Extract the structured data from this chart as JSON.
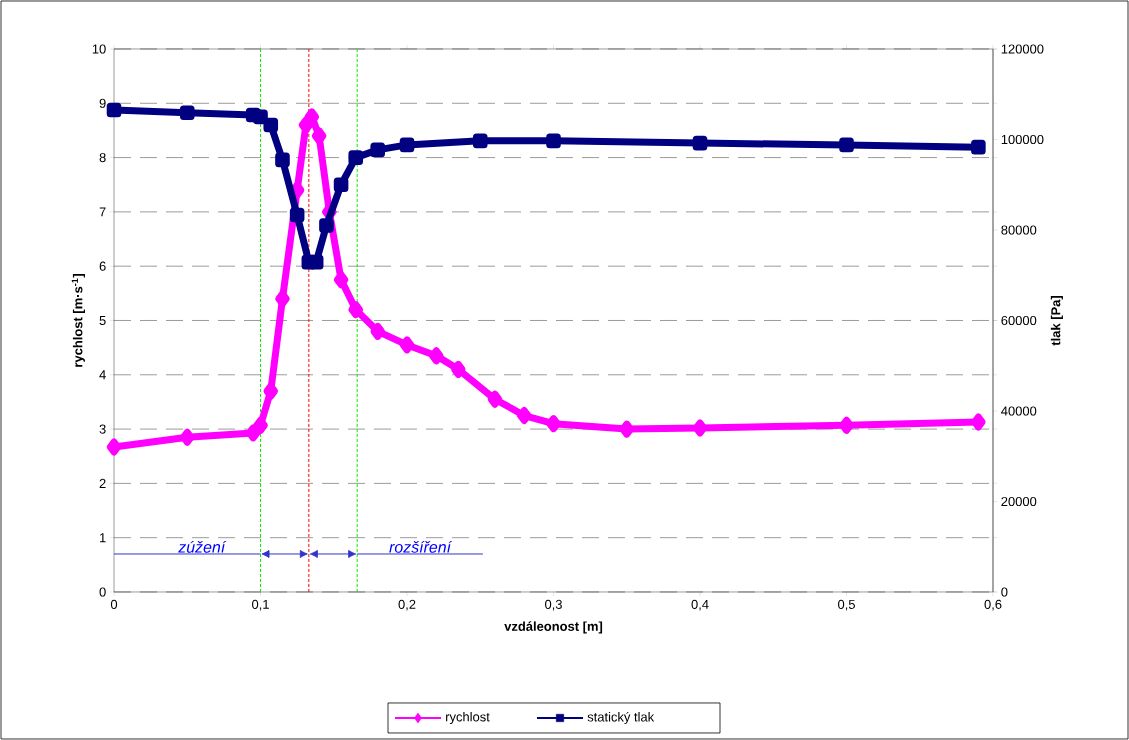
{
  "chart_data": {
    "type": "line",
    "xlabel": "vzdáleonost [m]",
    "ylabel": "rychlost [m·s$^{-1}$]",
    "y2label": "tlak [Pa]",
    "xlim": [
      0,
      0.6
    ],
    "xticks": [
      0,
      {
        "value": 0.1,
        "label": "0,1"
      },
      {
        "value": 0.2,
        "label": "0,2"
      },
      {
        "value": 0.3,
        "label": "0,3"
      },
      {
        "value": 0.4,
        "label": "0,4"
      },
      {
        "value": 0.5,
        "label": "0,5"
      },
      {
        "value": 0.6,
        "label": "0,6"
      }
    ],
    "ylim": [
      0,
      10
    ],
    "yticks": [
      0,
      1,
      2,
      3,
      4,
      5,
      6,
      7,
      8,
      9,
      10
    ],
    "y2lim": [
      0,
      120000
    ],
    "y2ticks": [
      0,
      20000,
      40000,
      60000,
      80000,
      100000,
      120000
    ],
    "grid": "y",
    "legend": "bottom",
    "series": [
      {
        "name": "rychlost",
        "color": "#ff00ff",
        "marker": "diamond",
        "x": [
          0,
          0.05,
          0.095,
          0.1,
          0.107,
          0.115,
          0.125,
          0.131,
          0.135,
          0.14,
          0.147,
          0.155,
          0.165,
          0.18,
          0.2,
          0.22,
          0.235,
          0.26,
          0.28,
          0.3,
          0.35,
          0.4,
          0.5,
          0.59
        ],
        "values": [
          2.67,
          2.85,
          2.93,
          3.07,
          3.7,
          5.4,
          7.4,
          8.6,
          8.75,
          8.4,
          7.0,
          5.75,
          5.2,
          4.8,
          4.55,
          4.35,
          4.1,
          3.55,
          3.25,
          3.1,
          3.0,
          3.02,
          3.07,
          3.13
        ]
      },
      {
        "name": "statický tlak",
        "color": "#000080",
        "marker": "square",
        "axis": "y2",
        "x": [
          0,
          0.05,
          0.095,
          0.1,
          0.107,
          0.115,
          0.125,
          0.133,
          0.138,
          0.145,
          0.155,
          0.165,
          0.18,
          0.2,
          0.25,
          0.3,
          0.4,
          0.5,
          0.59
        ],
        "values": [
          106500,
          105900,
          105400,
          105000,
          103200,
          95500,
          83300,
          72900,
          72900,
          81000,
          90000,
          96000,
          97700,
          98800,
          99700,
          99700,
          99200,
          98800,
          98300
        ]
      }
    ],
    "ref_lines": [
      {
        "axis": "x",
        "value": 0.1,
        "color": "#00ee00",
        "line_style": "dashed"
      },
      {
        "axis": "x",
        "value": 0.133,
        "color": "#ff0000",
        "line_style": "dashed"
      },
      {
        "axis": "x",
        "value": 0.166,
        "color": "#00ee00",
        "line_style": "dashed"
      }
    ],
    "annotations": [
      "zúžení",
      "rozšíření"
    ]
  }
}
